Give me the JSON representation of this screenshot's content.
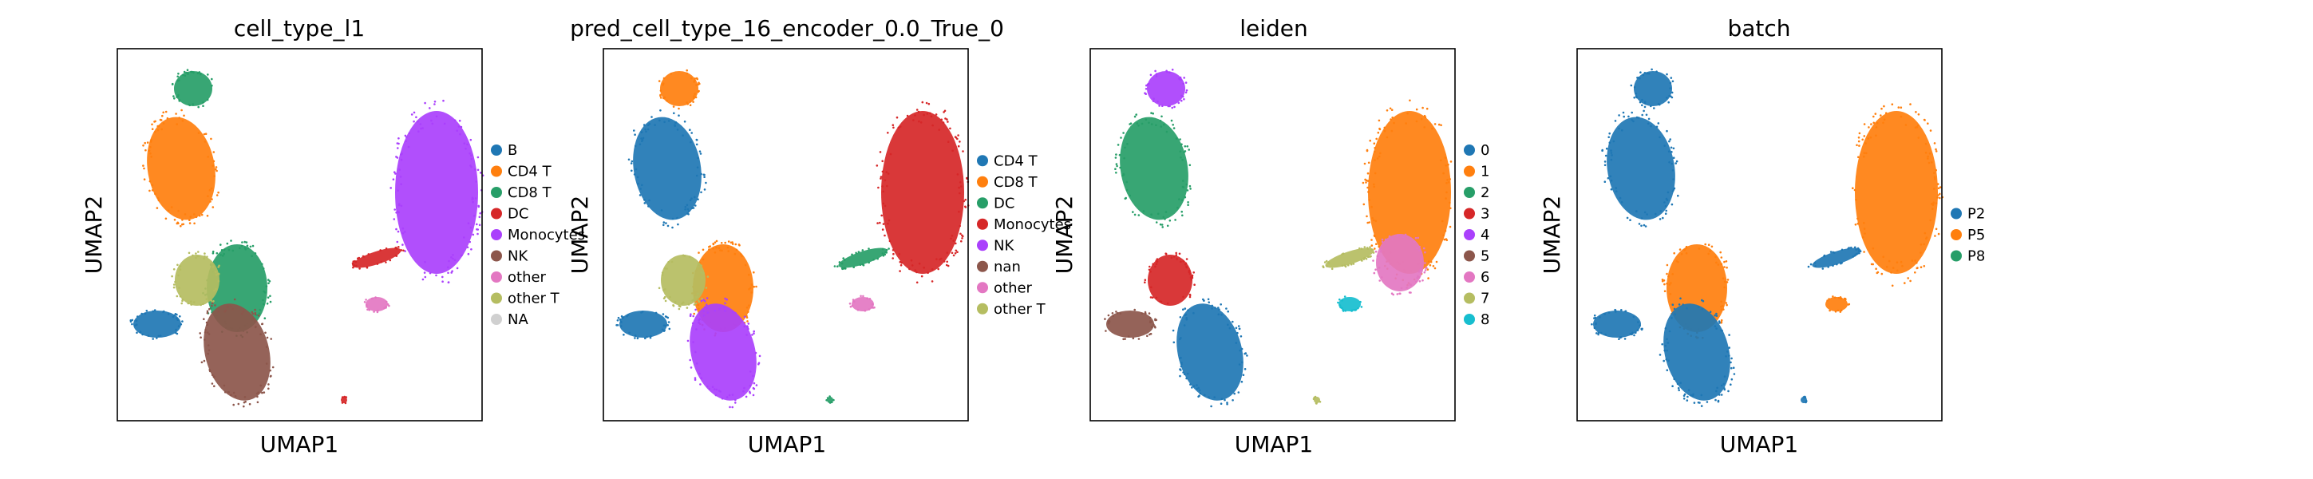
{
  "figure": {
    "xlabel": "UMAP1",
    "ylabel": "UMAP2"
  },
  "chart_data": [
    {
      "type": "scatter",
      "title": "cell_type_l1",
      "xlabel": "UMAP1",
      "ylabel": "UMAP2",
      "legend_placement": "right",
      "categories": [
        {
          "name": "B",
          "color": "#1f77b4"
        },
        {
          "name": "CD4 T",
          "color": "#ff7f0e"
        },
        {
          "name": "CD8 T",
          "color": "#279e68"
        },
        {
          "name": "DC",
          "color": "#d62728"
        },
        {
          "name": "Monocytes",
          "color": "#aa40fc"
        },
        {
          "name": "NK",
          "color": "#8c564b"
        },
        {
          "name": "other",
          "color": "#e377c2"
        },
        {
          "name": "other T",
          "color": "#b5bd61"
        },
        {
          "name": "NA",
          "color": "#d0d0d0"
        }
      ],
      "clusters": [
        {
          "category": "CD8 T",
          "region": "top"
        },
        {
          "category": "CD4 T",
          "region": "upper-mid"
        },
        {
          "category": "CD8 T",
          "region": "mid"
        },
        {
          "category": "other T",
          "region": "mid-left"
        },
        {
          "category": "NK",
          "region": "lower"
        },
        {
          "category": "B",
          "region": "left-blob"
        },
        {
          "category": "Monocytes",
          "region": "right-blob"
        },
        {
          "category": "DC",
          "region": "right-tail"
        },
        {
          "category": "other",
          "region": "right-small"
        },
        {
          "category": "DC",
          "region": "bottom-tiny"
        }
      ]
    },
    {
      "type": "scatter",
      "title": "pred_cell_type_16_encoder_0.0_True_0",
      "xlabel": "UMAP1",
      "ylabel": "UMAP2",
      "legend_placement": "right",
      "categories": [
        {
          "name": "CD4 T",
          "color": "#1f77b4"
        },
        {
          "name": "CD8 T",
          "color": "#ff7f0e"
        },
        {
          "name": "DC",
          "color": "#279e68"
        },
        {
          "name": "Monocytes",
          "color": "#d62728"
        },
        {
          "name": "NK",
          "color": "#aa40fc"
        },
        {
          "name": "nan",
          "color": "#8c564b"
        },
        {
          "name": "other",
          "color": "#e377c2"
        },
        {
          "name": "other T",
          "color": "#b5bd61"
        }
      ],
      "clusters": [
        {
          "category": "CD8 T",
          "region": "top"
        },
        {
          "category": "CD4 T",
          "region": "upper-mid"
        },
        {
          "category": "CD8 T",
          "region": "mid"
        },
        {
          "category": "other T",
          "region": "mid-left"
        },
        {
          "category": "NK",
          "region": "lower"
        },
        {
          "category": "CD4 T",
          "region": "left-blob"
        },
        {
          "category": "Monocytes",
          "region": "right-blob"
        },
        {
          "category": "DC",
          "region": "right-tail"
        },
        {
          "category": "other",
          "region": "right-small"
        },
        {
          "category": "DC",
          "region": "bottom-tiny"
        }
      ]
    },
    {
      "type": "scatter",
      "title": "leiden",
      "xlabel": "UMAP1",
      "ylabel": "UMAP2",
      "legend_placement": "right",
      "categories": [
        {
          "name": "0",
          "color": "#1f77b4"
        },
        {
          "name": "1",
          "color": "#ff7f0e"
        },
        {
          "name": "2",
          "color": "#279e68"
        },
        {
          "name": "3",
          "color": "#d62728"
        },
        {
          "name": "4",
          "color": "#aa40fc"
        },
        {
          "name": "5",
          "color": "#8c564b"
        },
        {
          "name": "6",
          "color": "#e377c2"
        },
        {
          "name": "7",
          "color": "#b5bd61"
        },
        {
          "name": "8",
          "color": "#17becf"
        }
      ],
      "clusters": [
        {
          "category": "4",
          "region": "top"
        },
        {
          "category": "2",
          "region": "upper-mid"
        },
        {
          "category": "3",
          "region": "mid-left"
        },
        {
          "category": "0",
          "region": "lower"
        },
        {
          "category": "5",
          "region": "left-blob"
        },
        {
          "category": "1",
          "region": "right-blob"
        },
        {
          "category": "6",
          "region": "right-lower"
        },
        {
          "category": "7",
          "region": "right-tail"
        },
        {
          "category": "8",
          "region": "right-small"
        },
        {
          "category": "7",
          "region": "bottom-tiny"
        }
      ]
    },
    {
      "type": "scatter",
      "title": "batch",
      "xlabel": "UMAP1",
      "ylabel": "UMAP2",
      "legend_placement": "right",
      "categories": [
        {
          "name": "P2",
          "color": "#1f77b4"
        },
        {
          "name": "P5",
          "color": "#ff7f0e"
        },
        {
          "name": "P8",
          "color": "#279e68"
        }
      ],
      "clusters": [
        {
          "category": "P2",
          "region": "top"
        },
        {
          "category": "P2",
          "region": "upper-mid"
        },
        {
          "category": "P5",
          "region": "mid"
        },
        {
          "category": "P2",
          "region": "lower"
        },
        {
          "category": "P2",
          "region": "left-blob"
        },
        {
          "category": "P5",
          "region": "right-blob"
        },
        {
          "category": "P2",
          "region": "right-tail"
        },
        {
          "category": "P5",
          "region": "right-small"
        },
        {
          "category": "P2",
          "region": "bottom-tiny"
        }
      ]
    }
  ]
}
